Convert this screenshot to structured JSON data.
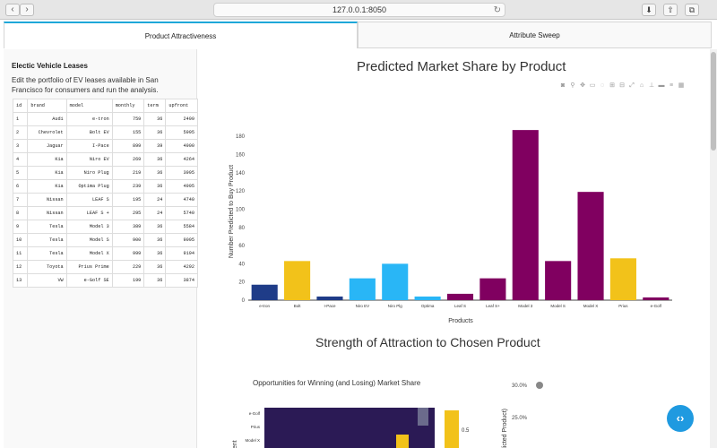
{
  "browser": {
    "url": "127.0.0.1:8050",
    "back_icon": "chevron-left-icon",
    "forward_icon": "chevron-right-icon"
  },
  "tabs": [
    {
      "label": "Product Attractiveness",
      "active": true
    },
    {
      "label": "Attribute Sweep",
      "active": false
    }
  ],
  "sidebar": {
    "heading": "Electic Vehicle Leases",
    "description": "Edit the portfolio of EV leases available in San Francisco for consumers and run the analysis.",
    "table": {
      "columns": [
        "id",
        "brand",
        "model",
        "monthly",
        "term",
        "upfront"
      ],
      "rows": [
        [
          "1",
          "Audi",
          "e-tron",
          "759",
          "36",
          "2499"
        ],
        [
          "2",
          "Chevrolet",
          "Bolt EV",
          "155",
          "36",
          "5995"
        ],
        [
          "3",
          "Jaguar",
          "I-Pace",
          "899",
          "39",
          "4900"
        ],
        [
          "4",
          "Kia",
          "Niro EV",
          "269",
          "36",
          "4264"
        ],
        [
          "5",
          "Kia",
          "Niro Plug",
          "219",
          "36",
          "3995"
        ],
        [
          "6",
          "Kia",
          "Optima Plug",
          "239",
          "36",
          "4995"
        ],
        [
          "7",
          "Nissan",
          "LEAF S",
          "195",
          "24",
          "4740"
        ],
        [
          "8",
          "Nissan",
          "LEAF S +",
          "295",
          "24",
          "5740"
        ],
        [
          "9",
          "Tesla",
          "Model 3",
          "389",
          "36",
          "5584"
        ],
        [
          "10",
          "Tesla",
          "Model S",
          "900",
          "36",
          "9095"
        ],
        [
          "11",
          "Tesla",
          "Model X",
          "999",
          "36",
          "9194"
        ],
        [
          "12",
          "Toyota",
          "Prius Prime",
          "229",
          "36",
          "4292"
        ],
        [
          "13",
          "VW",
          "e-Golf SE",
          "199",
          "36",
          "3874"
        ]
      ]
    }
  },
  "main": {
    "chart_title": "Predicted Market Share by Product",
    "section2_title": "Strength of Attraction to Chosen Product",
    "heatmap_title": "Opportunities for Winning (and Losing) Market Share"
  },
  "chart_data": [
    {
      "type": "bar",
      "title": "Predicted Market Share by Product",
      "xlabel": "Products",
      "ylabel": "Number Predicted to Buy Product",
      "categories": [
        "e-tron",
        "Bolt",
        "I-Pace",
        "Niro EV",
        "Niro Plg",
        "Optima",
        "Leaf S",
        "Leaf S+",
        "Model 3",
        "Model S",
        "Model X",
        "Prius",
        "e-Golf"
      ],
      "values": [
        17,
        43,
        4,
        24,
        40,
        4,
        7,
        24,
        187,
        43,
        119,
        46,
        3
      ],
      "colors": [
        "#1f3c88",
        "#f2c21a",
        "#1f3c88",
        "#29b6f6",
        "#29b6f6",
        "#29b6f6",
        "#800060",
        "#800060",
        "#800060",
        "#800060",
        "#800060",
        "#f2c21a",
        "#800060"
      ],
      "yticks": [
        0,
        20,
        40,
        60,
        80,
        100,
        120,
        140,
        160,
        180
      ],
      "ylim": [
        0,
        195
      ],
      "grid": false
    },
    {
      "type": "heatmap",
      "title": "Opportunities for Winning (and Losing) Market Share",
      "ylabel": "...ondent",
      "y": [
        "e-Golf",
        "Prius",
        "Model X"
      ],
      "colorbar_ticks": [
        "0.5"
      ]
    },
    {
      "type": "scatter",
      "ylabel": "Predicted Product)",
      "yticks": [
        "30.0%",
        "25.0%"
      ]
    }
  ],
  "colors": {
    "accent": "#1ea7d9",
    "fab": "#1f9ae0"
  },
  "fab_icon": "code-icon",
  "modebar_icons": [
    "camera-icon",
    "zoom-icon",
    "pan-icon",
    "box-select-icon",
    "lasso-icon",
    "zoom-in-icon",
    "zoom-out-icon",
    "autoscale-icon",
    "reset-icon",
    "spike-icon",
    "hover-closest-icon",
    "hover-compare-icon",
    "plotly-logo-icon"
  ]
}
